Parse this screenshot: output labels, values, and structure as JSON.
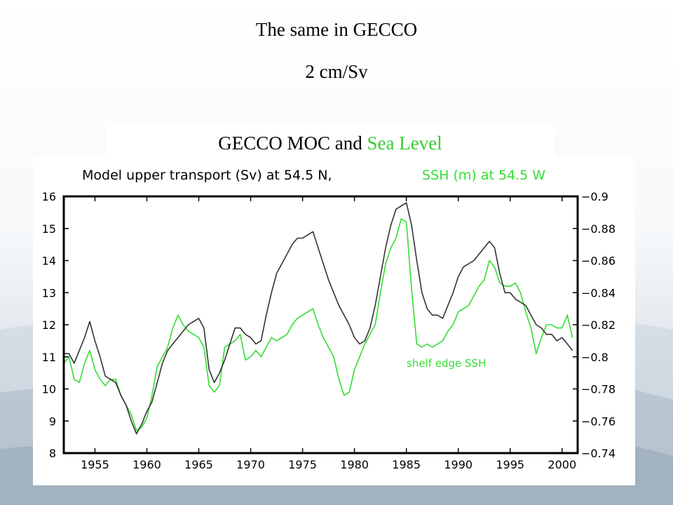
{
  "slide": {
    "title": "The same in GECCO",
    "subtitle": "2 cm/Sv",
    "caption_part1": "GECCO MOC and ",
    "caption_part2": "Sea Level"
  },
  "colors": {
    "moc": "#333333",
    "ssh": "#33dd33",
    "caption_highlight": "#33cc33"
  },
  "chart_data": {
    "type": "line",
    "header_part1": "Model upper transport (Sv) at 54.5 N,",
    "header_part2": "SSH (m) at 54.5 W",
    "annotation": "shelf edge SSH",
    "xlim": [
      1952,
      2001.5
    ],
    "xticks": [
      1955,
      1960,
      1965,
      1970,
      1975,
      1980,
      1985,
      1990,
      1995,
      2000
    ],
    "ylim_left": [
      8,
      16
    ],
    "yticks_left": [
      8,
      9,
      10,
      11,
      12,
      13,
      14,
      15,
      16
    ],
    "ylim_right": [
      -0.74,
      -0.9
    ],
    "yticks_right": [
      -0.74,
      -0.76,
      -0.78,
      -0.8,
      -0.82,
      -0.84,
      -0.86,
      -0.88,
      -0.9
    ],
    "yticks_right_labels": [
      "−0.74",
      "−0.76",
      "−0.78",
      "−0.8",
      "−0.82",
      "−0.84",
      "−0.86",
      "−0.88",
      "−0.9"
    ],
    "series": [
      {
        "axis": "left",
        "x": [
          1952,
          1952.5,
          1953,
          1953.5,
          1954,
          1954.5,
          1955,
          1955.5,
          1956,
          1956.5,
          1957,
          1957.5,
          1958,
          1958.5,
          1959,
          1959.5,
          1960,
          1960.5,
          1961,
          1961.5,
          1962,
          1962.5,
          1963,
          1963.5,
          1964,
          1964.5,
          1965,
          1965.5,
          1966,
          1966.5,
          1967,
          1967.5,
          1968,
          1968.5,
          1969,
          1969.5,
          1970,
          1970.5,
          1971,
          1971.5,
          1972,
          1972.5,
          1973,
          1973.5,
          1974,
          1974.5,
          1975,
          1975.5,
          1976,
          1976.5,
          1977,
          1977.5,
          1978,
          1978.5,
          1979,
          1979.5,
          1980,
          1980.5,
          1981,
          1981.5,
          1982,
          1982.5,
          1983,
          1983.5,
          1984,
          1984.5,
          1985,
          1985.5,
          1986,
          1986.5,
          1987,
          1987.5,
          1988,
          1988.5,
          1989,
          1989.5,
          1990,
          1990.5,
          1991,
          1991.5,
          1992,
          1992.5,
          1993,
          1993.5,
          1994,
          1994.5,
          1995,
          1995.5,
          1996,
          1996.5,
          1997,
          1997.5,
          1998,
          1998.5,
          1999,
          1999.5,
          2000,
          2000.5,
          2001
        ],
        "values": [
          11.1,
          11.1,
          10.8,
          11.2,
          11.6,
          12.1,
          11.5,
          11.0,
          10.4,
          10.3,
          10.2,
          9.8,
          9.5,
          9.0,
          8.6,
          8.9,
          9.3,
          9.6,
          10.2,
          10.8,
          11.2,
          11.4,
          11.6,
          11.8,
          12.0,
          12.1,
          12.2,
          11.9,
          10.6,
          10.2,
          10.5,
          10.9,
          11.4,
          11.9,
          11.9,
          11.7,
          11.6,
          11.4,
          11.5,
          12.3,
          13.0,
          13.6,
          13.9,
          14.2,
          14.5,
          14.7,
          14.7,
          14.8,
          14.9,
          14.4,
          13.9,
          13.4,
          13.0,
          12.6,
          12.3,
          12.0,
          11.6,
          11.4,
          11.5,
          11.9,
          12.6,
          13.5,
          14.4,
          15.1,
          15.6,
          15.7,
          15.8,
          15.1,
          14.0,
          13.0,
          12.5,
          12.3,
          12.3,
          12.2,
          12.6,
          13.0,
          13.5,
          13.8,
          13.9,
          14.0,
          14.2,
          14.4,
          14.6,
          14.4,
          13.6,
          13.0,
          13.0,
          12.8,
          12.7,
          12.6,
          12.3,
          12.0,
          11.9,
          11.7,
          11.7,
          11.5,
          11.6,
          11.4,
          11.2
        ]
      },
      {
        "axis": "right",
        "x": [
          1952,
          1952.5,
          1953,
          1953.5,
          1954,
          1954.5,
          1955,
          1955.5,
          1956,
          1956.5,
          1957,
          1957.5,
          1958,
          1958.5,
          1959,
          1959.5,
          1960,
          1960.5,
          1961,
          1961.5,
          1962,
          1962.5,
          1963,
          1963.5,
          1964,
          1964.5,
          1965,
          1965.5,
          1966,
          1966.5,
          1967,
          1967.5,
          1968,
          1968.5,
          1969,
          1969.5,
          1970,
          1970.5,
          1971,
          1971.5,
          1972,
          1972.5,
          1973,
          1973.5,
          1974,
          1974.5,
          1975,
          1975.5,
          1976,
          1976.5,
          1977,
          1977.5,
          1978,
          1978.5,
          1979,
          1979.5,
          1980,
          1980.5,
          1981,
          1981.5,
          1982,
          1982.5,
          1983,
          1983.5,
          1984,
          1984.5,
          1985,
          1985.5,
          1986,
          1986.5,
          1987,
          1987.5,
          1988,
          1988.5,
          1989,
          1989.5,
          1990,
          1990.5,
          1991,
          1991.5,
          1992,
          1992.5,
          1993,
          1993.5,
          1994,
          1994.5,
          1995,
          1995.5,
          1996,
          1996.5,
          1997,
          1997.5,
          1998,
          1998.5,
          1999,
          1999.5,
          2000,
          2000.5,
          2001
        ],
        "values": [
          -0.796,
          -0.8,
          -0.786,
          -0.784,
          -0.796,
          -0.804,
          -0.792,
          -0.786,
          -0.782,
          -0.786,
          -0.786,
          -0.776,
          -0.77,
          -0.764,
          -0.754,
          -0.756,
          -0.762,
          -0.776,
          -0.794,
          -0.8,
          -0.806,
          -0.818,
          -0.826,
          -0.82,
          -0.816,
          -0.814,
          -0.812,
          -0.806,
          -0.782,
          -0.778,
          -0.782,
          -0.806,
          -0.808,
          -0.81,
          -0.814,
          -0.798,
          -0.8,
          -0.804,
          -0.8,
          -0.806,
          -0.812,
          -0.81,
          -0.812,
          -0.814,
          -0.82,
          -0.824,
          -0.826,
          -0.828,
          -0.83,
          -0.82,
          -0.812,
          -0.806,
          -0.8,
          -0.786,
          -0.776,
          -0.778,
          -0.792,
          -0.8,
          -0.808,
          -0.814,
          -0.82,
          -0.84,
          -0.858,
          -0.868,
          -0.874,
          -0.886,
          -0.884,
          -0.842,
          -0.808,
          -0.806,
          -0.808,
          -0.806,
          -0.808,
          -0.81,
          -0.816,
          -0.82,
          -0.828,
          -0.83,
          -0.832,
          -0.838,
          -0.844,
          -0.848,
          -0.86,
          -0.856,
          -0.846,
          -0.844,
          -0.844,
          -0.846,
          -0.84,
          -0.828,
          -0.818,
          -0.802,
          -0.812,
          -0.82,
          -0.82,
          -0.818,
          -0.818,
          -0.826,
          -0.812
        ]
      }
    ]
  }
}
